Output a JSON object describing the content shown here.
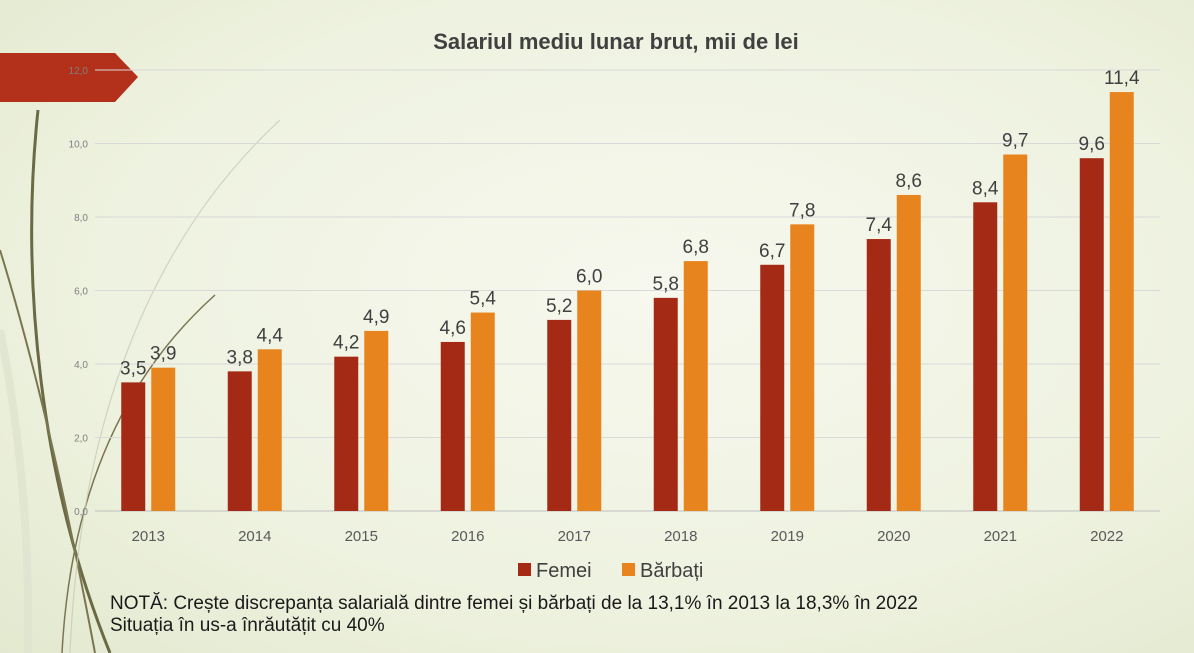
{
  "colors": {
    "femei": "#a52a16",
    "barbati": "#e8841e",
    "banner": "#b3301a"
  },
  "note": {
    "line1": "NOTĂ: Crește discrepanța salarială dintre femei și bărbați de la 13,1% în 2013 la 18,3% în 2022",
    "line2": "Situația în us-a înrăutățit cu 40%"
  },
  "chart_data": {
    "type": "bar",
    "title": "Salariul mediu lunar brut, mii de lei",
    "categories": [
      "2013",
      "2014",
      "2015",
      "2016",
      "2017",
      "2018",
      "2019",
      "2020",
      "2021",
      "2022"
    ],
    "series": [
      {
        "name": "Femei",
        "values": [
          3.5,
          3.8,
          4.2,
          4.6,
          5.2,
          5.8,
          6.7,
          7.4,
          8.4,
          9.6
        ],
        "labels": [
          "3,5",
          "3,8",
          "4,2",
          "4,6",
          "5,2",
          "5,8",
          "6,7",
          "7,4",
          "8,4",
          "9,6"
        ]
      },
      {
        "name": "Bărbați",
        "values": [
          3.9,
          4.4,
          4.9,
          5.4,
          6.0,
          6.8,
          7.8,
          8.6,
          9.7,
          11.4
        ],
        "labels": [
          "3,9",
          "4,4",
          "4,9",
          "5,4",
          "6,0",
          "6,8",
          "7,8",
          "8,6",
          "9,7",
          "11,4"
        ]
      }
    ],
    "y_ticks": [
      {
        "value": 0,
        "label": "0,0"
      },
      {
        "value": 2,
        "label": "2,0"
      },
      {
        "value": 4,
        "label": "4,0"
      },
      {
        "value": 6,
        "label": "6,0"
      },
      {
        "value": 8,
        "label": "8,0"
      },
      {
        "value": 10,
        "label": "10,0"
      },
      {
        "value": 12,
        "label": "12,0"
      }
    ],
    "ylim": [
      0,
      12
    ],
    "grid": true,
    "legend": "bottom"
  }
}
